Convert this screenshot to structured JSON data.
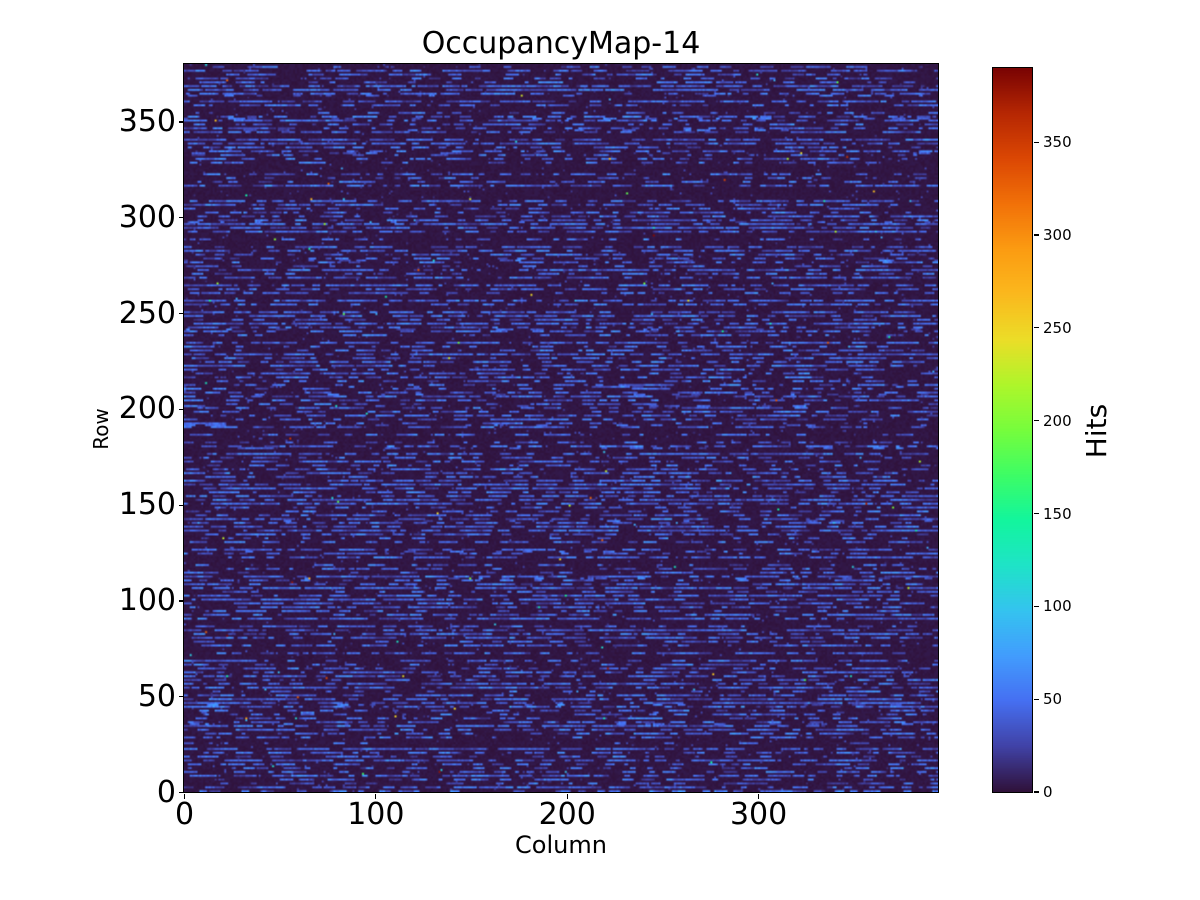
{
  "chart_data": {
    "type": "heatmap",
    "title": "OccupancyMap-14",
    "xlabel": "Column",
    "ylabel": "Row",
    "colorbar_label": "Hits",
    "colormap": "turbo",
    "grid": false,
    "x_range": [
      0,
      394
    ],
    "y_range": [
      0,
      380
    ],
    "vmin": 0,
    "vmax": 390,
    "xticks": [
      0,
      100,
      200,
      300
    ],
    "yticks": [
      0,
      50,
      100,
      150,
      200,
      250,
      300,
      350
    ],
    "colorbar_ticks": [
      0,
      50,
      100,
      150,
      200,
      250,
      300,
      350
    ],
    "colors": {
      "background_cell": "#30123b",
      "streak_blue": "#4566e0",
      "hot_cyan": "#35c0ee",
      "hot_max_red": "#7a0403",
      "axes_text": "#000000",
      "figure_background": "#ffffff"
    },
    "description": "Dense pixel-occupancy heatmap: dark purple background with horizontal dashed blue streaks on alternating rows and sparse isolated hot pixels up to ~390 hits.",
    "pattern": {
      "seed": 14,
      "rows": 380,
      "cols": 394,
      "row_pitch": 2,
      "active_row_prob": 0.85,
      "sparse_row_prob": 0.12,
      "active_density": 0.45,
      "sparse_density": 0.12,
      "dash_min": 2,
      "dash_max": 7,
      "dash_value_min": 18,
      "dash_value_max": 62,
      "background_max": 4,
      "isolated_cell_prob": 0.015,
      "hot_pixel_prob": 0.0009,
      "hot_value_min": 80
    }
  }
}
